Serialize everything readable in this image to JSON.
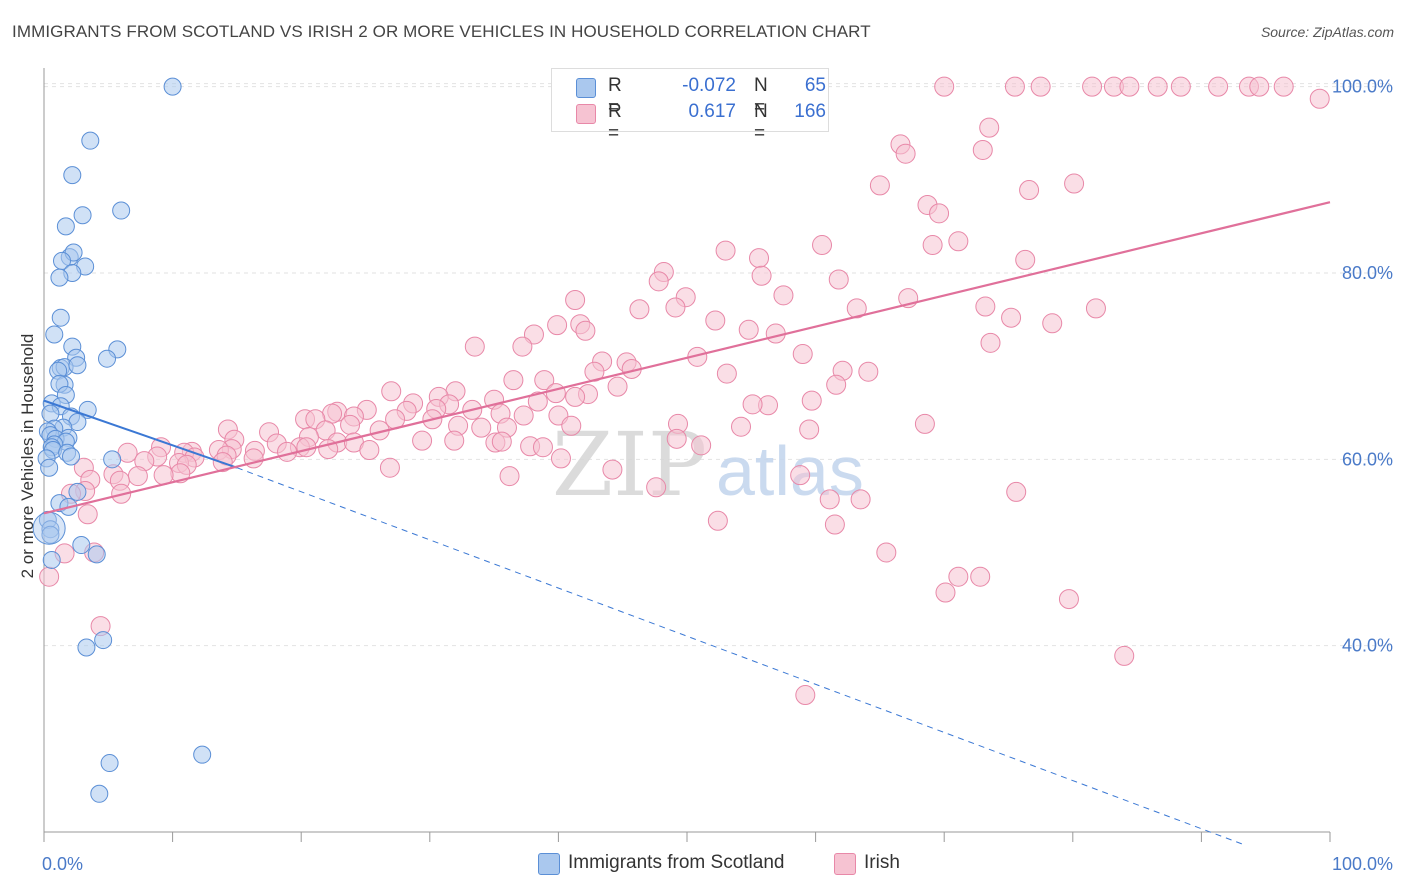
{
  "header": {
    "title": "IMMIGRANTS FROM SCOTLAND VS IRISH 2 OR MORE VEHICLES IN HOUSEHOLD CORRELATION CHART",
    "source": "Source: ZipAtlas.com"
  },
  "watermark": {
    "zip": "ZIP",
    "atlas": "atlas"
  },
  "legend_top": {
    "rows": [
      {
        "r_label": "R =",
        "r_value": "-0.072",
        "n_label": "N =",
        "n_value": "65"
      },
      {
        "r_label": "R =",
        "r_value": "0.617",
        "n_label": "N =",
        "n_value": "166"
      }
    ]
  },
  "colors": {
    "blue_fill": "#aac8ee",
    "blue_stroke": "#5b8fd6",
    "blue_line": "#3b78d4",
    "pink_fill": "#f6c3d2",
    "pink_stroke": "#e888a8",
    "pink_line": "#e0709a",
    "tick_text": "#4a7ac8",
    "grid": "#e2e2e2"
  },
  "chart_data": {
    "type": "scatter",
    "title": "IMMIGRANTS FROM SCOTLAND VS IRISH 2 OR MORE VEHICLES IN HOUSEHOLD CORRELATION CHART",
    "xlabel": "",
    "ylabel": "2 or more Vehicles in Household",
    "xlim": [
      0,
      100
    ],
    "ylim": [
      20,
      102
    ],
    "x_tick_labels": [
      "0.0%",
      "100.0%"
    ],
    "y_ticks": [
      40,
      60,
      80,
      100
    ],
    "y_tick_labels": [
      "40.0%",
      "60.0%",
      "80.0%",
      "100.0%"
    ],
    "grid": true,
    "legend_position": "bottom",
    "series": [
      {
        "name": "Immigrants from Scotland",
        "r": -0.072,
        "n": 65,
        "trend": {
          "x0": 0,
          "y0": 66.3,
          "x1": 15,
          "y1": 59.1,
          "dashed_to_x": 100,
          "dashed_to_y": 18.6
        },
        "points": [
          [
            10,
            100
          ],
          [
            3.6,
            94.2
          ],
          [
            2.2,
            90.5
          ],
          [
            6,
            86.7
          ],
          [
            3,
            86.2
          ],
          [
            1.7,
            85
          ],
          [
            2,
            81.7
          ],
          [
            2.3,
            82.2
          ],
          [
            1.4,
            81.3
          ],
          [
            3.2,
            80.7
          ],
          [
            2.2,
            80
          ],
          [
            1.2,
            79.5
          ],
          [
            1.3,
            75.2
          ],
          [
            0.8,
            73.4
          ],
          [
            2.2,
            72.1
          ],
          [
            5.7,
            71.8
          ],
          [
            2.5,
            70.9
          ],
          [
            4.9,
            70.8
          ],
          [
            1.3,
            69.8
          ],
          [
            1.6,
            69.9
          ],
          [
            2.6,
            70.1
          ],
          [
            1.1,
            69.5
          ],
          [
            1.6,
            68
          ],
          [
            1.2,
            68.1
          ],
          [
            1.7,
            66.9
          ],
          [
            0.6,
            66
          ],
          [
            1.3,
            65.7
          ],
          [
            3.4,
            65.3
          ],
          [
            0.5,
            64.9
          ],
          [
            2.1,
            64.6
          ],
          [
            2.6,
            64
          ],
          [
            1.5,
            63.4
          ],
          [
            0.8,
            63.3
          ],
          [
            0.3,
            63
          ],
          [
            0.5,
            62.6
          ],
          [
            1.9,
            62.3
          ],
          [
            0.9,
            62.2
          ],
          [
            1.7,
            61.9
          ],
          [
            0.8,
            61.6
          ],
          [
            0.6,
            61.3
          ],
          [
            0.7,
            61
          ],
          [
            1.8,
            60.7
          ],
          [
            2.1,
            60.3
          ],
          [
            0.2,
            60.1
          ],
          [
            5.3,
            60
          ],
          [
            0.4,
            59.1
          ],
          [
            2.6,
            56.5
          ],
          [
            1.2,
            55.3
          ],
          [
            1.9,
            54.9
          ],
          [
            0.3,
            53.5
          ],
          [
            0.5,
            52.5
          ],
          [
            0.5,
            51.9
          ],
          [
            2.9,
            50.8
          ],
          [
            4.1,
            49.8
          ],
          [
            0.6,
            49.2
          ],
          [
            4.6,
            40.6
          ],
          [
            3.3,
            39.8
          ],
          [
            5.1,
            27.4
          ],
          [
            12.3,
            28.3
          ],
          [
            4.3,
            24.1
          ]
        ]
      },
      {
        "name": "Irish",
        "r": 0.617,
        "n": 166,
        "trend": {
          "x0": 0,
          "y0": 54.2,
          "x1": 100,
          "y1": 87.6
        },
        "points": [
          [
            70,
            100
          ],
          [
            75.5,
            100
          ],
          [
            77.5,
            100
          ],
          [
            81.5,
            100
          ],
          [
            83.2,
            100
          ],
          [
            84.4,
            100
          ],
          [
            86.6,
            100
          ],
          [
            88.4,
            100
          ],
          [
            91.3,
            100
          ],
          [
            93.7,
            100
          ],
          [
            94.5,
            100
          ],
          [
            96.4,
            100
          ],
          [
            99.2,
            98.7
          ],
          [
            73.5,
            95.6
          ],
          [
            66.6,
            93.8
          ],
          [
            73,
            93.2
          ],
          [
            67,
            92.8
          ],
          [
            80.1,
            89.6
          ],
          [
            65,
            89.4
          ],
          [
            76.6,
            88.9
          ],
          [
            68.7,
            87.3
          ],
          [
            69.6,
            86.4
          ],
          [
            60.5,
            83
          ],
          [
            71.1,
            83.4
          ],
          [
            69.1,
            83
          ],
          [
            53,
            82.4
          ],
          [
            55.6,
            81.6
          ],
          [
            76.3,
            81.4
          ],
          [
            48.2,
            80.1
          ],
          [
            55.8,
            79.7
          ],
          [
            47.8,
            79.1
          ],
          [
            61.8,
            79.3
          ],
          [
            57.5,
            77.6
          ],
          [
            49.9,
            77.4
          ],
          [
            67.2,
            77.3
          ],
          [
            41.3,
            77.1
          ],
          [
            46.3,
            76.1
          ],
          [
            63.2,
            76.2
          ],
          [
            49.1,
            76.3
          ],
          [
            73.2,
            76.4
          ],
          [
            81.8,
            76.2
          ],
          [
            75.2,
            75.2
          ],
          [
            52.2,
            74.9
          ],
          [
            78.4,
            74.6
          ],
          [
            41.7,
            74.5
          ],
          [
            39.9,
            74.4
          ],
          [
            42.1,
            73.8
          ],
          [
            38.1,
            73.4
          ],
          [
            56.9,
            73.5
          ],
          [
            54.8,
            73.9
          ],
          [
            37.2,
            72.1
          ],
          [
            73.6,
            72.5
          ],
          [
            33.5,
            72.1
          ],
          [
            59,
            71.3
          ],
          [
            50.8,
            71
          ],
          [
            43.4,
            70.5
          ],
          [
            45.3,
            70.4
          ],
          [
            45.7,
            69.7
          ],
          [
            42.8,
            69.4
          ],
          [
            64.1,
            69.4
          ],
          [
            62.1,
            69.5
          ],
          [
            53.1,
            69.2
          ],
          [
            36.5,
            68.5
          ],
          [
            38.9,
            68.5
          ],
          [
            61.6,
            68
          ],
          [
            44.6,
            67.8
          ],
          [
            27,
            67.3
          ],
          [
            39.8,
            67.1
          ],
          [
            32,
            67.3
          ],
          [
            42.3,
            67
          ],
          [
            41.3,
            66.7
          ],
          [
            30.7,
            66.7
          ],
          [
            38.4,
            66.2
          ],
          [
            35,
            66.4
          ],
          [
            28.7,
            66
          ],
          [
            56.3,
            65.8
          ],
          [
            55.1,
            65.9
          ],
          [
            31.5,
            65.9
          ],
          [
            59.7,
            66.3
          ],
          [
            25.1,
            65.3
          ],
          [
            22.8,
            65.1
          ],
          [
            30.5,
            65.4
          ],
          [
            33.3,
            65.3
          ],
          [
            28.2,
            65.2
          ],
          [
            35.5,
            64.9
          ],
          [
            22.4,
            64.9
          ],
          [
            37.3,
            64.7
          ],
          [
            40,
            64.7
          ],
          [
            24.1,
            64.6
          ],
          [
            20.3,
            64.3
          ],
          [
            27.3,
            64.3
          ],
          [
            30.2,
            64.3
          ],
          [
            21.1,
            64.3
          ],
          [
            23.8,
            63.7
          ],
          [
            32.2,
            63.6
          ],
          [
            34,
            63.4
          ],
          [
            54.2,
            63.5
          ],
          [
            49.3,
            63.8
          ],
          [
            68.5,
            63.8
          ],
          [
            41,
            63.6
          ],
          [
            36,
            63.4
          ],
          [
            59.5,
            63.2
          ],
          [
            14.3,
            63.2
          ],
          [
            26.1,
            63.1
          ],
          [
            21.9,
            63.1
          ],
          [
            17.5,
            62.9
          ],
          [
            20.6,
            62.4
          ],
          [
            49.2,
            62.2
          ],
          [
            14.8,
            62.1
          ],
          [
            31.9,
            62
          ],
          [
            29.4,
            62
          ],
          [
            22.8,
            61.8
          ],
          [
            35.1,
            61.8
          ],
          [
            35.6,
            61.9
          ],
          [
            24.1,
            61.8
          ],
          [
            18.1,
            61.7
          ],
          [
            51.1,
            61.5
          ],
          [
            37.8,
            61.4
          ],
          [
            19.9,
            61.3
          ],
          [
            20.4,
            61.3
          ],
          [
            38.8,
            61.3
          ],
          [
            9.1,
            61.3
          ],
          [
            22.1,
            61.1
          ],
          [
            14.6,
            61.1
          ],
          [
            13.6,
            61
          ],
          [
            25.3,
            61
          ],
          [
            18.9,
            60.8
          ],
          [
            11.5,
            60.8
          ],
          [
            16.4,
            60.9
          ],
          [
            10.9,
            60.7
          ],
          [
            6.5,
            60.7
          ],
          [
            14.2,
            60.4
          ],
          [
            8.8,
            60.3
          ],
          [
            11.7,
            60.2
          ],
          [
            40.2,
            60.1
          ],
          [
            16.3,
            60.1
          ],
          [
            7.8,
            59.8
          ],
          [
            13.9,
            59.7
          ],
          [
            10.5,
            59.6
          ],
          [
            11.1,
            59.4
          ],
          [
            3.1,
            59.1
          ],
          [
            26.9,
            59.1
          ],
          [
            44.2,
            58.9
          ],
          [
            10.6,
            58.5
          ],
          [
            5.4,
            58.4
          ],
          [
            9.3,
            58.3
          ],
          [
            58.8,
            58.3
          ],
          [
            36.2,
            58.2
          ],
          [
            7.3,
            58.2
          ],
          [
            3.6,
            57.8
          ],
          [
            5.9,
            57.7
          ],
          [
            47.6,
            57
          ],
          [
            75.6,
            56.5
          ],
          [
            3.2,
            56.6
          ],
          [
            6,
            56.3
          ],
          [
            2.1,
            56.3
          ],
          [
            61.1,
            55.7
          ],
          [
            63.5,
            55.7
          ],
          [
            3.4,
            54.1
          ],
          [
            52.4,
            53.4
          ],
          [
            61.5,
            53
          ],
          [
            65.5,
            50
          ],
          [
            3.9,
            50
          ],
          [
            1.6,
            49.9
          ],
          [
            0.4,
            47.4
          ],
          [
            71.1,
            47.4
          ],
          [
            72.8,
            47.4
          ],
          [
            70.1,
            45.7
          ],
          [
            79.7,
            45
          ],
          [
            4.4,
            42.1
          ],
          [
            84,
            38.9
          ],
          [
            59.2,
            34.7
          ]
        ]
      }
    ]
  },
  "legend_bottom": [
    {
      "label": "Immigrants from Scotland"
    },
    {
      "label": "Irish"
    }
  ]
}
